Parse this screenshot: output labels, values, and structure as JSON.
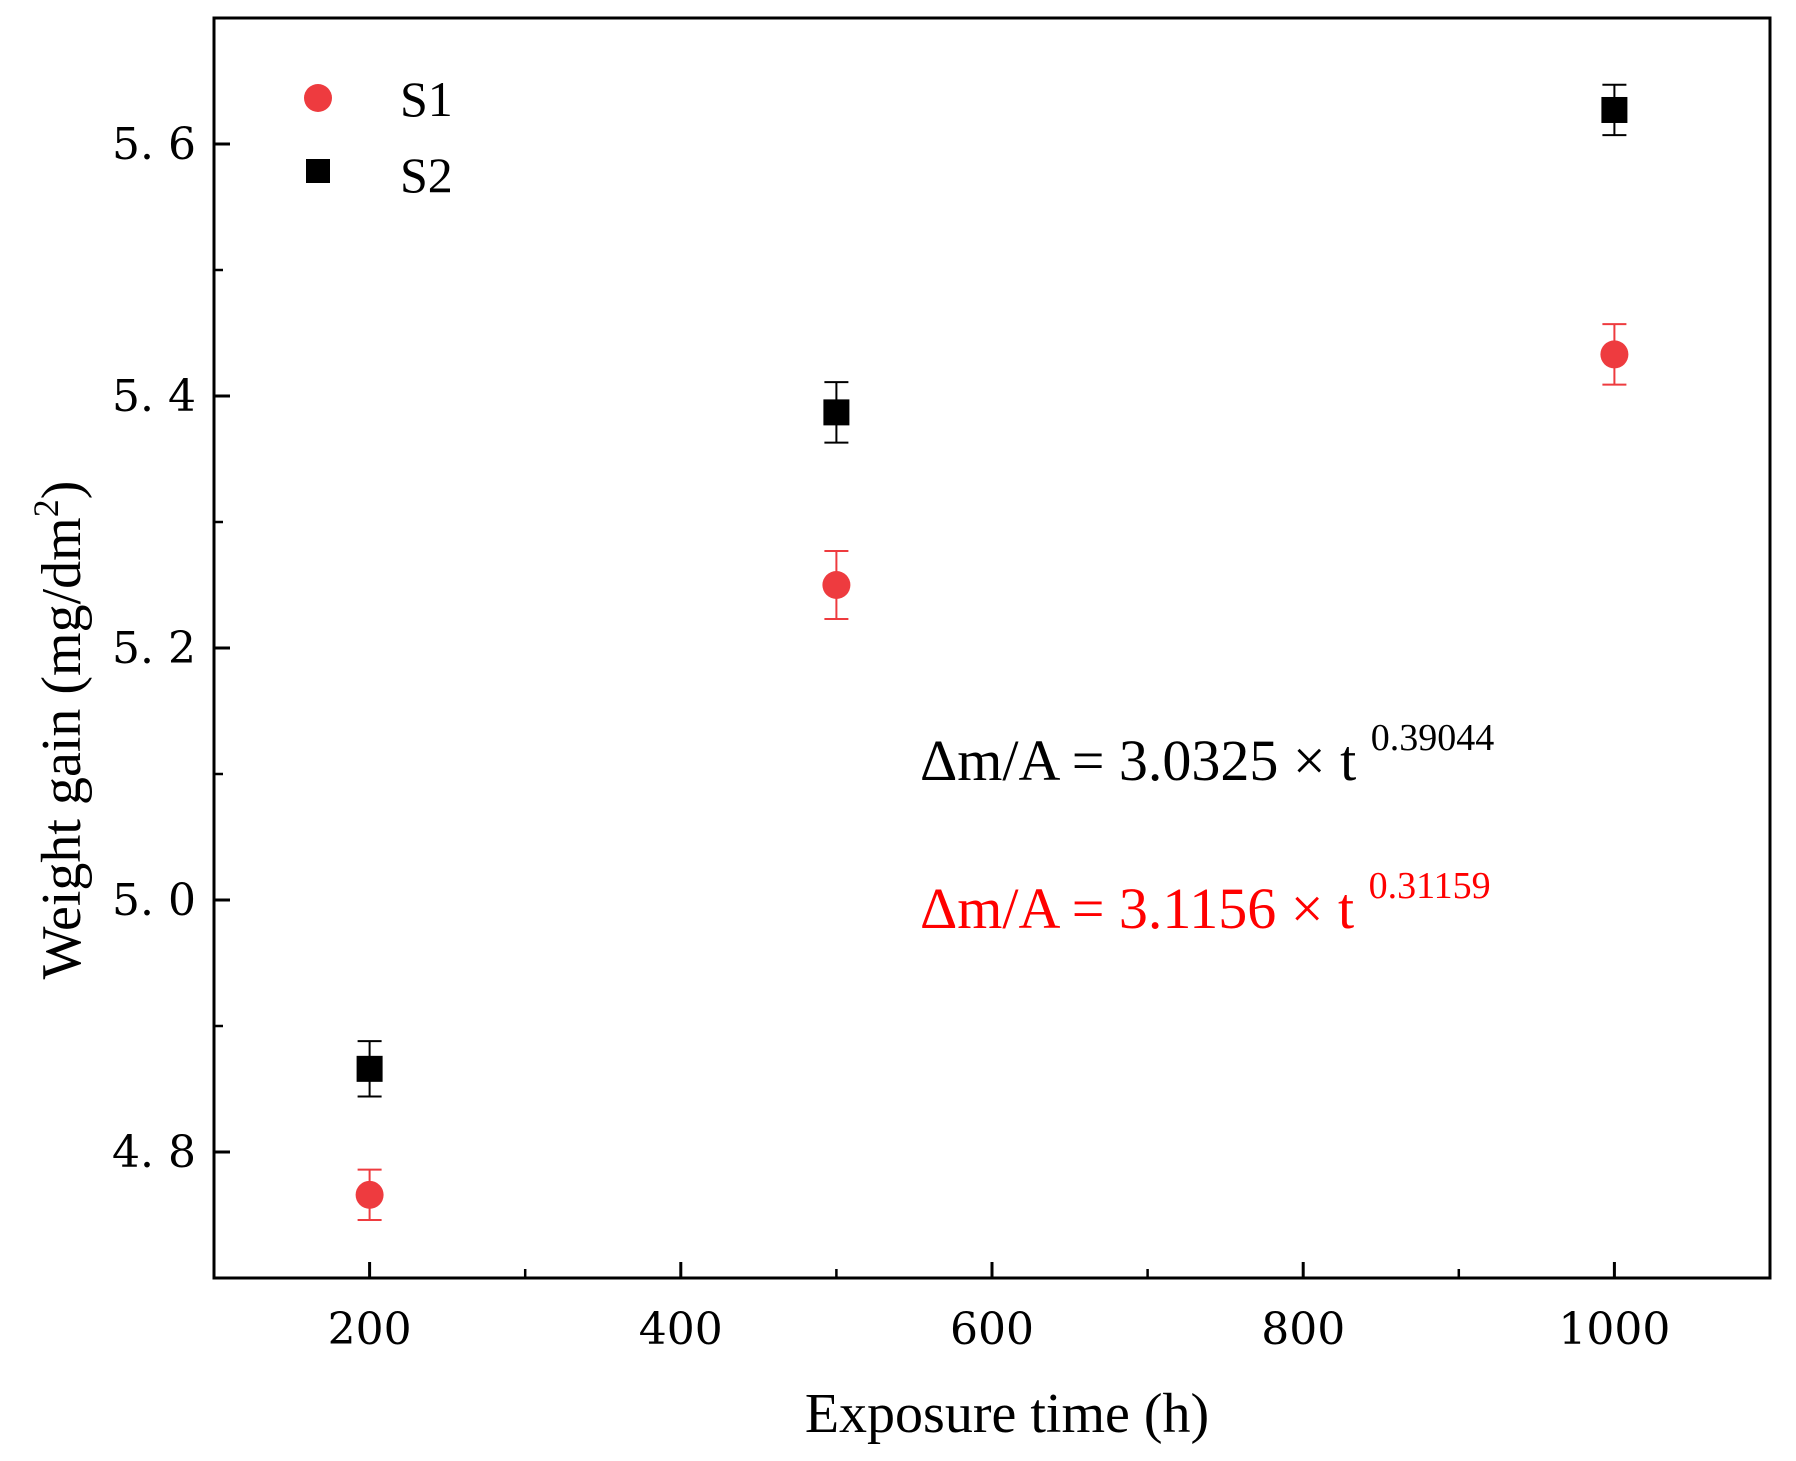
{
  "chart_data": {
    "type": "scatter",
    "title": "",
    "xlabel": "Exposure time (h)",
    "ylabel_main": "Weight gain (mg/dm",
    "ylabel_sup": "2",
    "ylabel_close": ")",
    "xlim": [
      100,
      1100
    ],
    "ylim": [
      4.7,
      5.7
    ],
    "x_ticks": [
      200,
      400,
      600,
      800,
      1000
    ],
    "x_tick_labels": [
      "200",
      "400",
      "600",
      "800",
      "1000"
    ],
    "x_minor_ticks": [
      300,
      500,
      700,
      900
    ],
    "y_ticks": [
      4.8,
      5.0,
      5.2,
      5.4,
      5.6
    ],
    "y_tick_labels": [
      "4. 8",
      "5. 0",
      "5. 2",
      "5. 4",
      "5. 6"
    ],
    "y_minor_ticks": [
      4.9,
      5.1,
      5.3,
      5.5
    ],
    "legend_position": "top-left",
    "series": [
      {
        "name": "S1",
        "marker": "circle",
        "color": "#ee3b3f",
        "line_color": "#ff0000",
        "x": [
          200,
          500,
          1000
        ],
        "y": [
          4.766,
          5.25,
          5.433
        ],
        "err": [
          0.02,
          0.027,
          0.024
        ],
        "fit": {
          "a": 3.1156,
          "b": 0.31159,
          "x_range": [
            200,
            1000
          ]
        }
      },
      {
        "name": "S2",
        "marker": "square",
        "color": "#000000",
        "line_color": "#000000",
        "x": [
          200,
          500,
          1000
        ],
        "y": [
          4.866,
          5.387,
          5.627
        ],
        "err": [
          0.022,
          0.024,
          0.02
        ],
        "fit": {
          "a": 3.0325,
          "b": 0.39044,
          "x_range": [
            200,
            1000
          ]
        }
      }
    ],
    "annotations": [
      {
        "series": "S2",
        "text_main": "Δm/A = 3.0325 × t",
        "text_sup": "0.39044",
        "color": "#000000"
      },
      {
        "series": "S1",
        "text_main": "Δm/A = 3.1156 × t",
        "text_sup": "0.31159",
        "color": "#ff0000"
      }
    ]
  }
}
